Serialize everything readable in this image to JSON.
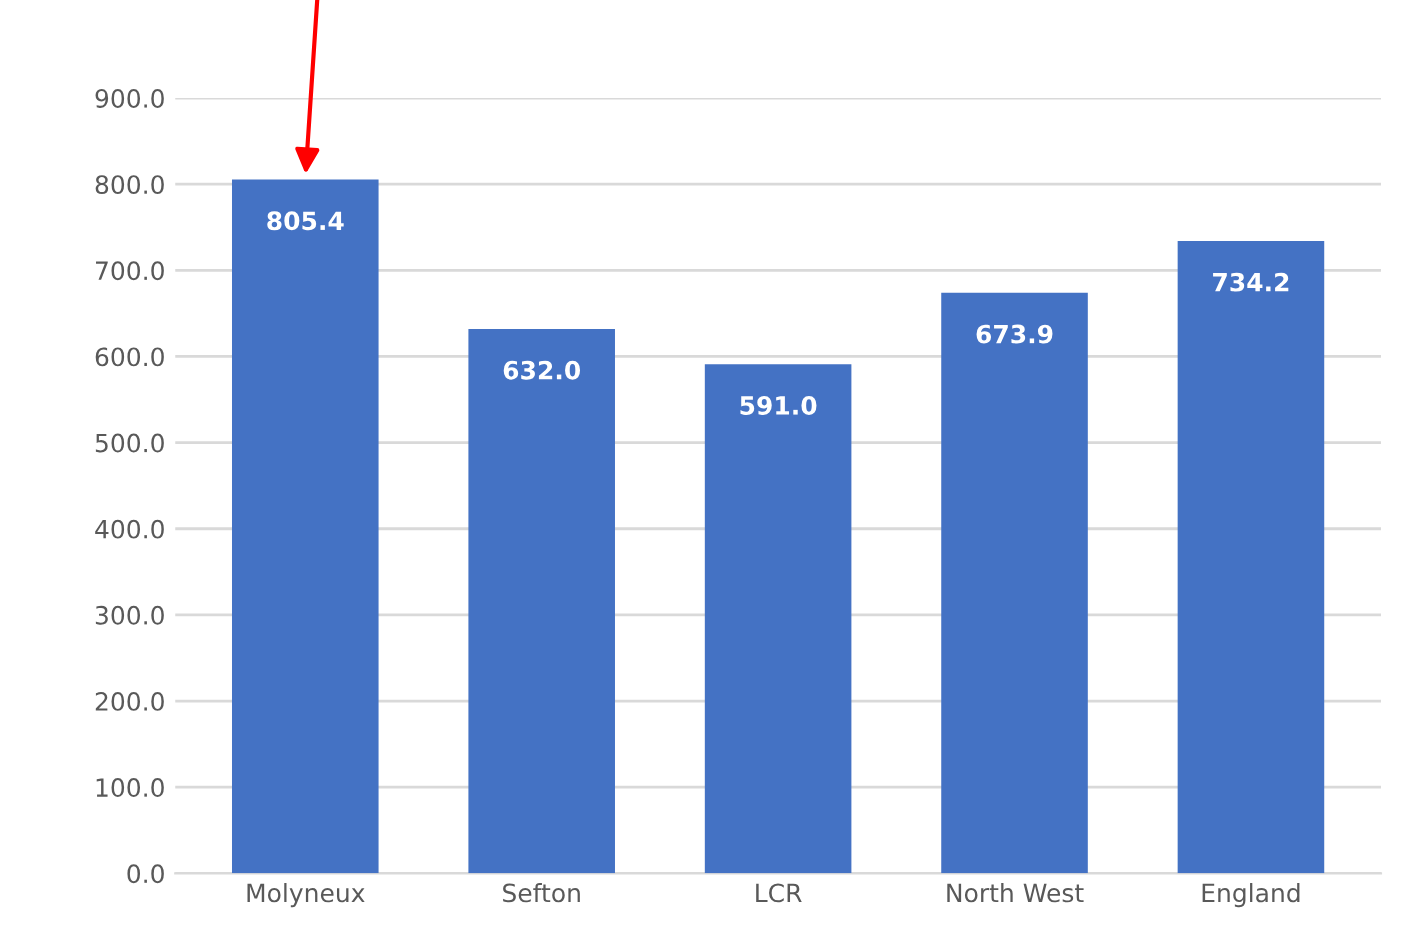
{
  "chart_data": {
    "type": "bar",
    "categories": [
      "Molyneux",
      "Sefton",
      "LCR",
      "North West",
      "England"
    ],
    "values": [
      805.4,
      632.0,
      591.0,
      673.9,
      734.2
    ],
    "value_labels": [
      "805.4",
      "632.0",
      "591.0",
      "673.9",
      "734.2"
    ],
    "color": "#4472c4",
    "ylim": [
      0,
      900
    ],
    "yticks": [
      {
        "value": 0,
        "label": "0.0"
      },
      {
        "value": 100,
        "label": "100.0"
      },
      {
        "value": 200,
        "label": "200.0"
      },
      {
        "value": 300,
        "label": "300.0"
      },
      {
        "value": 400,
        "label": "400.0"
      },
      {
        "value": 500,
        "label": "500.0"
      },
      {
        "value": 600,
        "label": "600.0"
      },
      {
        "value": 700,
        "label": "700.0"
      },
      {
        "value": 800,
        "label": "800.0"
      },
      {
        "value": 900,
        "label": "900.0"
      }
    ],
    "grid": "y"
  }
}
